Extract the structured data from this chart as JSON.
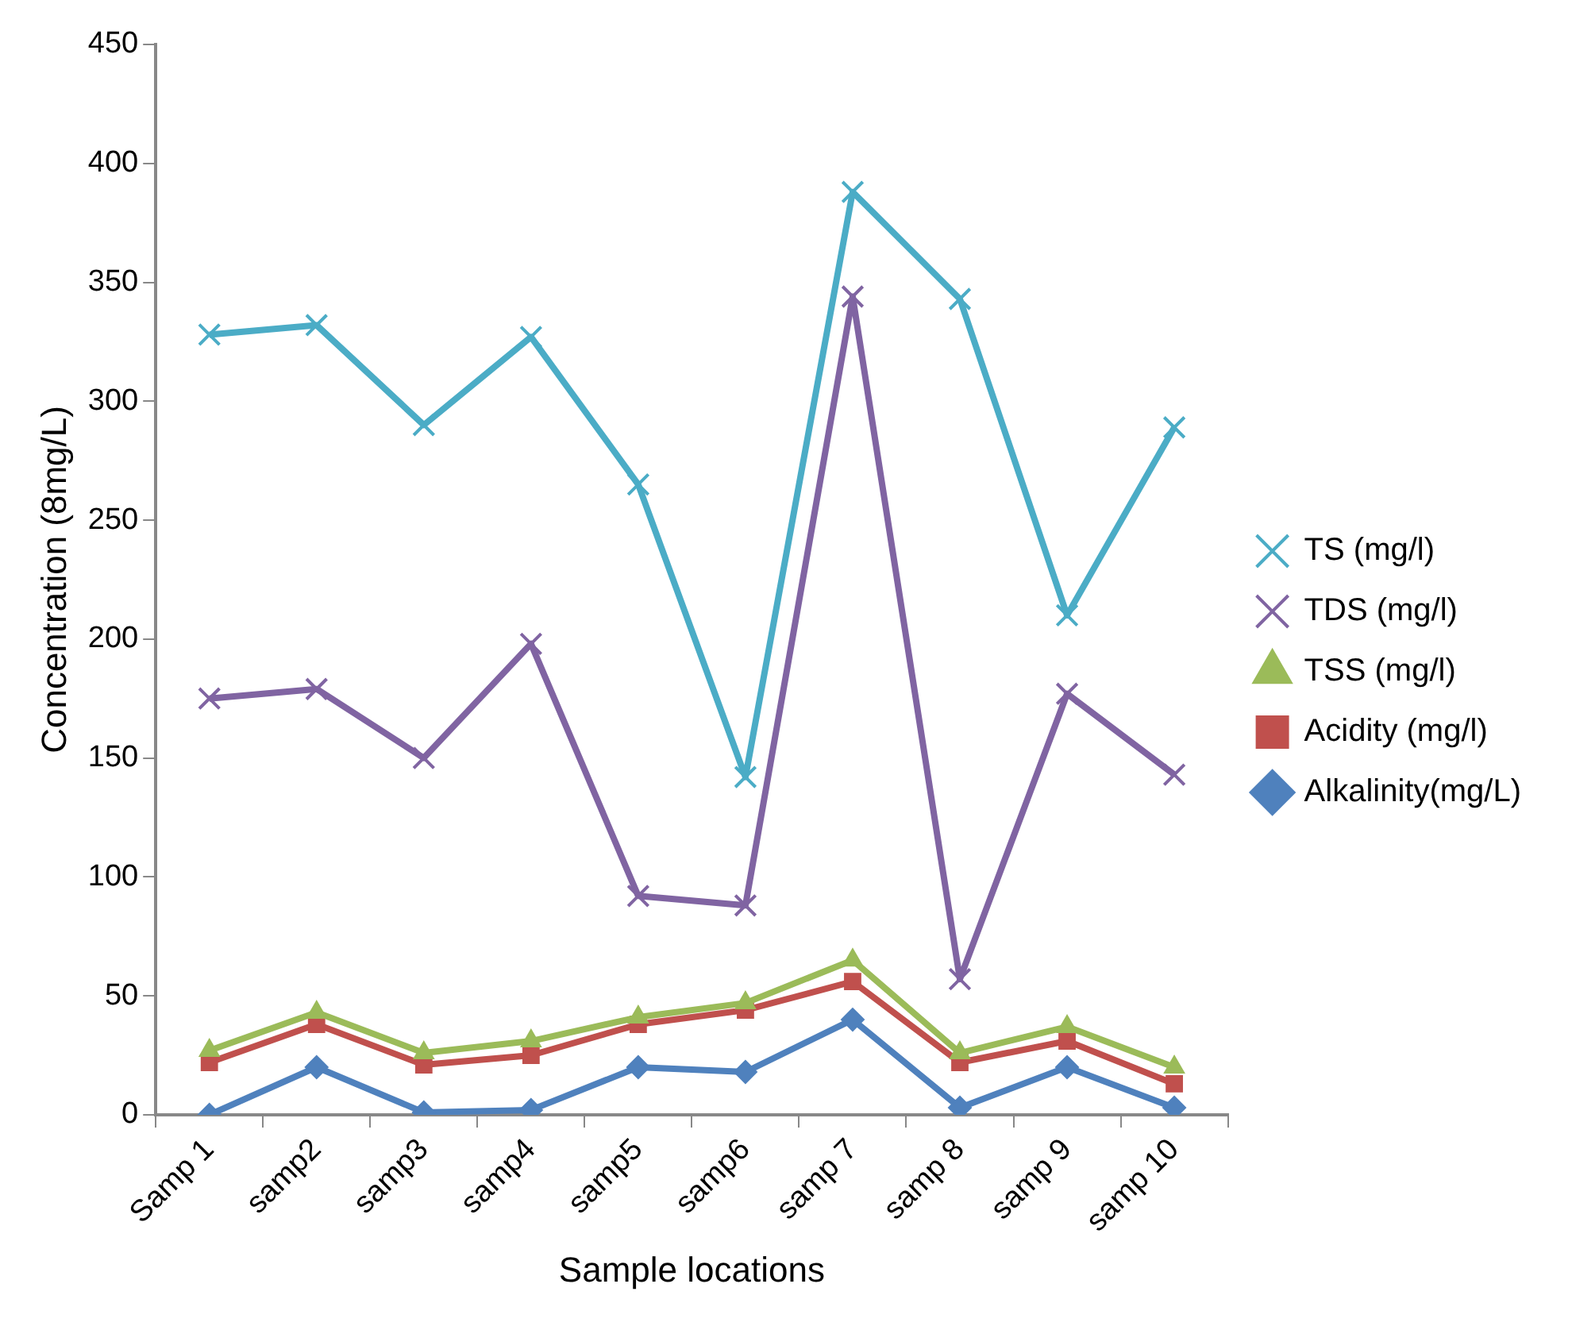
{
  "chart_data": {
    "type": "line",
    "xlabel": "Sample locations",
    "ylabel": "Concentration (8mg/L)",
    "categories": [
      "Samp 1",
      "samp2",
      "samp3",
      "samp4",
      "samp5",
      "samp6",
      "samp 7",
      "samp 8",
      "samp 9",
      "samp 10"
    ],
    "series": [
      {
        "name": "TS (mg/l)",
        "color": "#4bacc6",
        "marker": "cross",
        "values": [
          328,
          332,
          290,
          327,
          265,
          142,
          388,
          343,
          210,
          289
        ]
      },
      {
        "name": "TDS (mg/l)",
        "color": "#8064a2",
        "marker": "cross",
        "values": [
          175,
          179,
          150,
          198,
          92,
          88,
          344,
          57,
          177,
          143
        ]
      },
      {
        "name": "TSS (mg/l)",
        "color": "#9bbb59",
        "marker": "triangle",
        "values": [
          27,
          43,
          26,
          31,
          41,
          47,
          65,
          26,
          37,
          20
        ]
      },
      {
        "name": "Acidity (mg/l)",
        "color": "#c0504d",
        "marker": "square",
        "values": [
          22,
          38,
          21,
          25,
          38,
          44,
          56,
          22,
          31,
          13
        ]
      },
      {
        "name": "Alkalinity(mg/L)",
        "color": "#4f81bd",
        "marker": "diamond",
        "values": [
          0,
          20,
          1,
          2,
          20,
          18,
          40,
          3,
          20,
          3
        ]
      }
    ],
    "ylim": [
      0,
      450
    ],
    "yticks": [
      0,
      50,
      100,
      150,
      200,
      250,
      300,
      350,
      400,
      450
    ],
    "grid": false,
    "legend": "right",
    "line_style": "solid"
  }
}
